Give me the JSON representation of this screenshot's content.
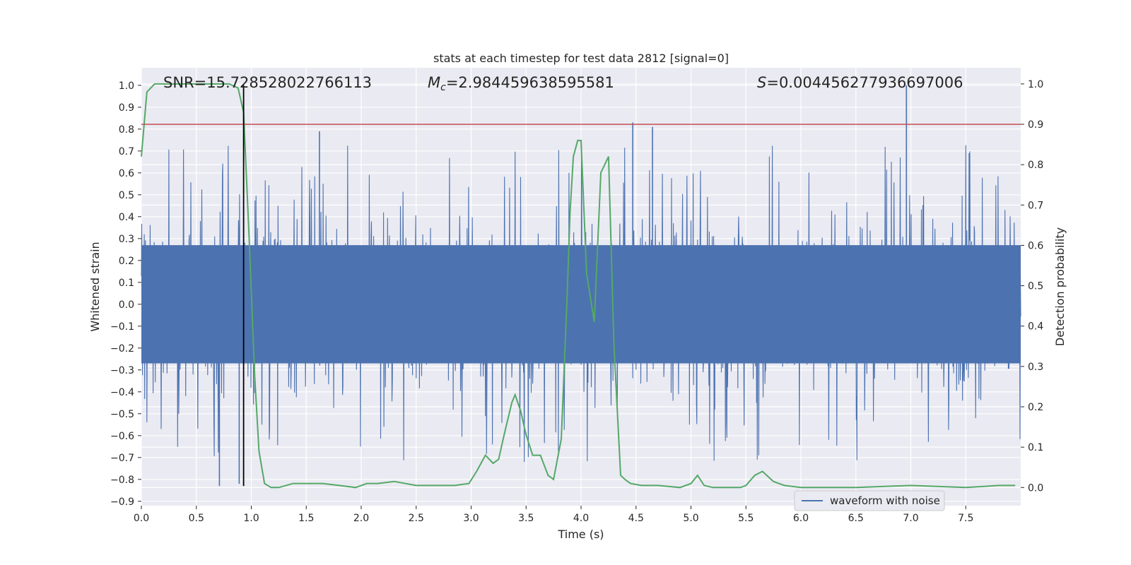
{
  "chart_data": {
    "type": "line",
    "title": "stats at each timestep for test data 2812 [signal=0]",
    "xlabel": "Time (s)",
    "ylabel": "Whitened strain",
    "y2label": "Detection probability",
    "xlim": [
      0.0,
      8.0
    ],
    "ylim": [
      -0.92,
      1.08
    ],
    "y2lim": [
      -0.045,
      1.04
    ],
    "xticks": [
      "0.0",
      "0.5",
      "1.0",
      "1.5",
      "2.0",
      "2.5",
      "3.0",
      "3.5",
      "4.0",
      "4.5",
      "5.0",
      "5.5",
      "6.0",
      "6.5",
      "7.0",
      "7.5"
    ],
    "yticks": [
      "1.0",
      "0.9",
      "0.8",
      "0.7",
      "0.6",
      "0.5",
      "0.4",
      "0.3",
      "0.2",
      "0.1",
      "0.0",
      "−0.1",
      "−0.2",
      "−0.3",
      "−0.4",
      "−0.5",
      "−0.6",
      "−0.7",
      "−0.8",
      "−0.9"
    ],
    "y2ticks": [
      "1.0",
      "0.9",
      "0.8",
      "0.7",
      "0.6",
      "0.5",
      "0.4",
      "0.3",
      "0.2",
      "0.1",
      "0.0"
    ],
    "grid": true,
    "legend_position": "lower-center-right",
    "annotations": {
      "snr": "SNR=15.728528022766113",
      "mc_symbol": "M",
      "mc_sub": "c",
      "mc_value": "=2.984459638595581",
      "s_symbol": "S",
      "s_value": "=0.004456277936697006"
    },
    "series": [
      {
        "name": "waveform with noise",
        "axis": "left",
        "color": "#4c72b0",
        "kind": "noise",
        "bulk_amplitude": 0.27,
        "peak_max": 1.0,
        "peak_min": -0.83,
        "notable_peaks": [
          {
            "x": 4.47,
            "y": 0.83
          },
          {
            "x": 4.65,
            "y": 0.81
          },
          {
            "x": 6.96,
            "y": 1.0
          },
          {
            "x": 1.62,
            "y": 0.79
          },
          {
            "x": 0.71,
            "y": -0.83
          },
          {
            "x": 0.89,
            "y": -0.82
          }
        ]
      },
      {
        "name": "",
        "axis": "right",
        "color": "#55a868",
        "x": [
          0.0,
          0.05,
          0.12,
          0.2,
          0.5,
          0.8,
          0.88,
          0.93,
          0.98,
          1.03,
          1.07,
          1.12,
          1.18,
          1.25,
          1.38,
          1.5,
          1.65,
          1.8,
          1.95,
          2.05,
          2.15,
          2.3,
          2.5,
          2.7,
          2.85,
          2.98,
          3.05,
          3.13,
          3.2,
          3.25,
          3.3,
          3.37,
          3.4,
          3.45,
          3.5,
          3.56,
          3.63,
          3.7,
          3.75,
          3.82,
          3.87,
          3.9,
          3.93,
          3.97,
          4.0,
          4.05,
          4.12,
          4.18,
          4.25,
          4.3,
          4.36,
          4.4,
          4.45,
          4.55,
          4.7,
          4.9,
          5.0,
          5.06,
          5.12,
          5.2,
          5.3,
          5.45,
          5.5,
          5.58,
          5.65,
          5.75,
          5.85,
          6.0,
          6.5,
          7.0,
          7.5,
          7.8,
          7.95
        ],
        "y": [
          0.82,
          0.98,
          1.0,
          1.0,
          1.0,
          1.0,
          0.99,
          0.93,
          0.62,
          0.28,
          0.09,
          0.01,
          0.0,
          0.0,
          0.01,
          0.01,
          0.01,
          0.005,
          0.0,
          0.01,
          0.01,
          0.015,
          0.005,
          0.005,
          0.005,
          0.01,
          0.04,
          0.08,
          0.06,
          0.07,
          0.13,
          0.21,
          0.23,
          0.19,
          0.13,
          0.08,
          0.08,
          0.03,
          0.02,
          0.12,
          0.45,
          0.68,
          0.82,
          0.86,
          0.86,
          0.53,
          0.41,
          0.78,
          0.82,
          0.35,
          0.03,
          0.02,
          0.01,
          0.005,
          0.005,
          0.0,
          0.01,
          0.03,
          0.005,
          0.0,
          0.0,
          0.0,
          0.005,
          0.03,
          0.04,
          0.015,
          0.005,
          0.0,
          0.0,
          0.005,
          0.0,
          0.005,
          0.005
        ]
      }
    ],
    "threshold": {
      "axis": "right",
      "value": 0.9,
      "color": "#c44e52"
    },
    "marker": {
      "x": 0.93,
      "color": "#000000"
    }
  }
}
